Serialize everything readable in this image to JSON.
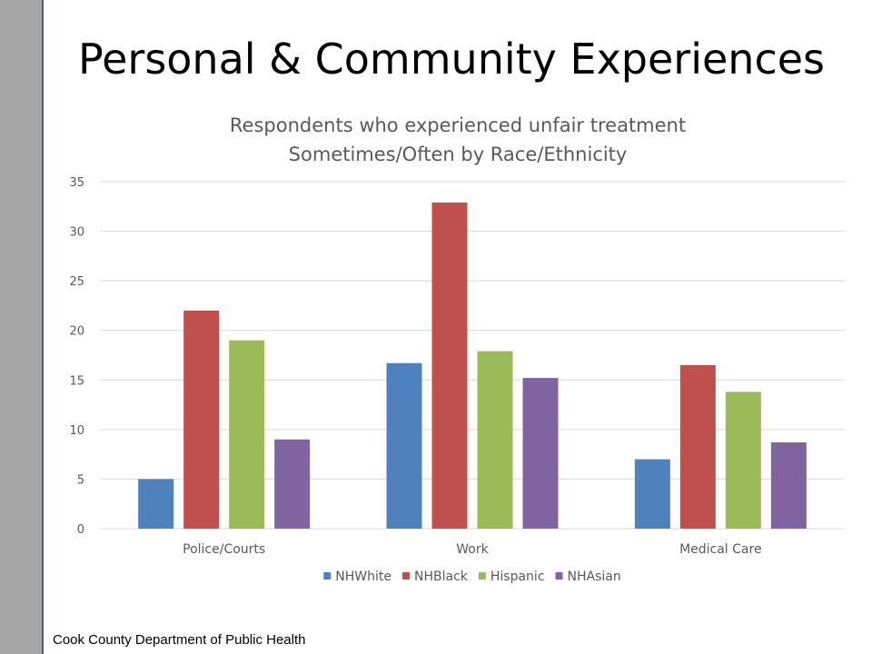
{
  "slide": {
    "title": "Personal & Community Experiences",
    "footer": "Cook County Department of Public Health"
  },
  "chart_data": {
    "type": "bar",
    "title": [
      "Respondents who experienced unfair treatment",
      "Sometimes/Often by Race/Ethnicity"
    ],
    "xlabel": "",
    "ylabel": "",
    "categories": [
      "Police/Courts",
      "Work",
      "Medical Care"
    ],
    "series": [
      {
        "name": "NHWhite",
        "color": "#4f81bd",
        "values": [
          5,
          16.7,
          7
        ]
      },
      {
        "name": "NHBlack",
        "color": "#c0504d",
        "values": [
          22,
          32.9,
          16.5
        ]
      },
      {
        "name": "Hispanic",
        "color": "#9bbb59",
        "values": [
          19,
          17.9,
          13.8
        ]
      },
      {
        "name": "NHAsian",
        "color": "#8064a2",
        "values": [
          9,
          15.2,
          8.7
        ]
      }
    ],
    "ylim": [
      0,
      35
    ],
    "yticks": [
      0,
      5,
      10,
      15,
      20,
      25,
      30,
      35
    ],
    "grid": true,
    "legend": "bottom"
  }
}
